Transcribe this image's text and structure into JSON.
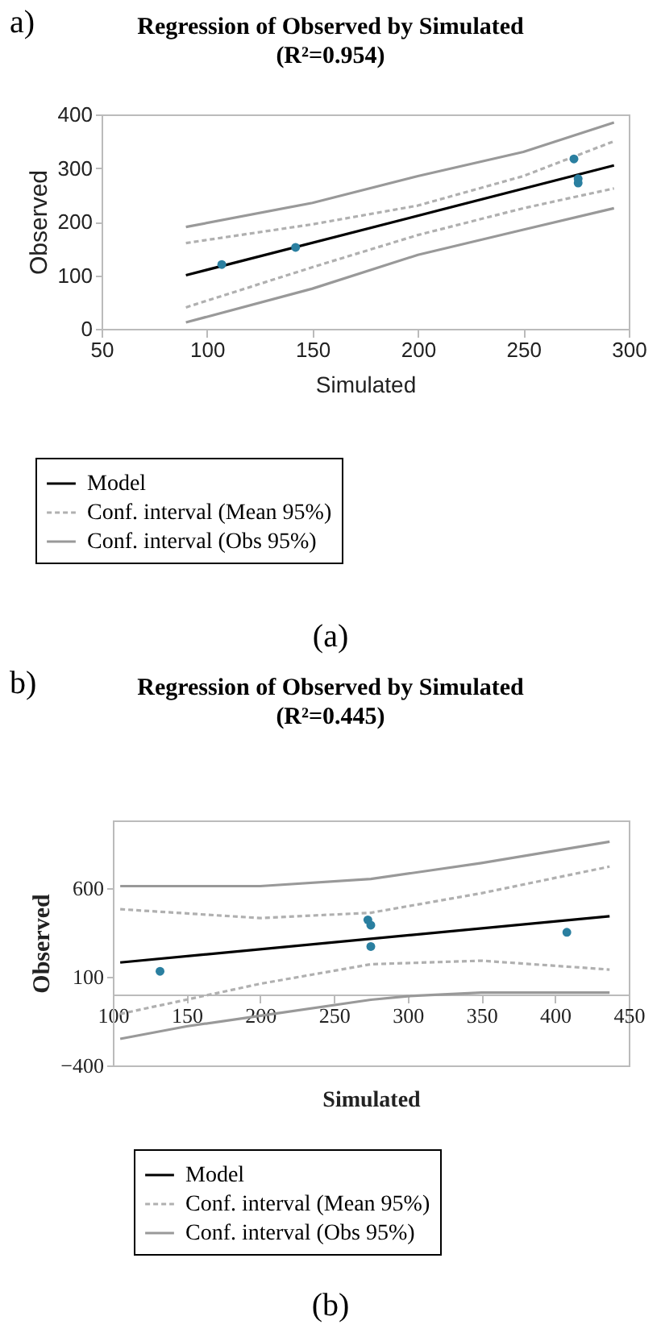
{
  "chart_data": [
    {
      "type": "line",
      "title": "Regression of Observed by Simulated",
      "subtitle": "(R²=0.954)",
      "xlabel": "Simulated",
      "ylabel": "Observed",
      "annotations": [
        "a)",
        "(a)"
      ],
      "xlim": [
        50,
        300
      ],
      "xticks": [
        50,
        100,
        150,
        200,
        250,
        300
      ],
      "ylim": [
        0,
        400
      ],
      "yticks": [
        0,
        100,
        200,
        300,
        400
      ],
      "grid": false,
      "legend": "bottom",
      "series": [
        {
          "name": "Model",
          "color": "#000000",
          "line_style": "solid",
          "x": [
            90,
            293
          ],
          "values": [
            100,
            305
          ]
        },
        {
          "name": "Conf. interval (Mean 95%)",
          "color": "#b0b0b0",
          "line_style": "dashed",
          "x": [
            90,
            150,
            200,
            250,
            293
          ],
          "values": [
            160,
            195,
            230,
            285,
            350
          ]
        },
        {
          "color": "#b0b0b0",
          "line_style": "dashed",
          "x": [
            90,
            150,
            200,
            250,
            293
          ],
          "values": [
            40,
            115,
            175,
            225,
            262
          ]
        },
        {
          "name": "Conf. interval (Obs 95%)",
          "color": "#999999",
          "line_style": "solid",
          "x": [
            90,
            150,
            200,
            250,
            293
          ],
          "values": [
            190,
            235,
            285,
            330,
            385
          ]
        },
        {
          "color": "#999999",
          "line_style": "solid",
          "x": [
            90,
            150,
            200,
            250,
            293
          ],
          "values": [
            12,
            75,
            138,
            185,
            225
          ]
        },
        {
          "type": "scatter",
          "color": "#2a7fa0",
          "marker": "circle",
          "x": [
            107,
            142,
            274,
            276,
            276
          ],
          "values": [
            120,
            152,
            317,
            280,
            272
          ]
        }
      ]
    },
    {
      "type": "line",
      "title": "Regression of Observed by Simulated",
      "subtitle": "(R²=0.445)",
      "xlabel": "Simulated",
      "ylabel": "Observed",
      "annotations": [
        "b)",
        "(b)"
      ],
      "xlim": [
        100,
        450
      ],
      "xticks": [
        100,
        150,
        200,
        250,
        300,
        350,
        400,
        450
      ],
      "ylim": [
        -400,
        980
      ],
      "yticks": [
        -400,
        100,
        600
      ],
      "grid": false,
      "legend": "bottom",
      "series": [
        {
          "name": "Model",
          "color": "#000000",
          "line_style": "solid",
          "x": [
            105,
            437
          ],
          "values": [
            180,
            440
          ]
        },
        {
          "name": "Conf. interval (Mean 95%)",
          "color": "#b0b0b0",
          "line_style": "dashed",
          "x": [
            105,
            200,
            275,
            350,
            437
          ],
          "values": [
            480,
            430,
            460,
            570,
            720
          ]
        },
        {
          "color": "#b0b0b0",
          "line_style": "dashed",
          "x": [
            105,
            200,
            275,
            350,
            437
          ],
          "values": [
            -110,
            60,
            170,
            190,
            140
          ]
        },
        {
          "name": "Conf. interval (Obs 95%)",
          "color": "#999999",
          "line_style": "solid",
          "x": [
            105,
            200,
            275,
            350,
            437
          ],
          "values": [
            610,
            610,
            650,
            740,
            860
          ]
        },
        {
          "color": "#999999",
          "line_style": "solid",
          "x": [
            105,
            150,
            200,
            275,
            300,
            350,
            437
          ],
          "values": [
            -250,
            -180,
            -120,
            -30,
            -10,
            10,
            10
          ]
        },
        {
          "type": "scatter",
          "color": "#2a7fa0",
          "marker": "circle",
          "x": [
            132,
            273,
            275,
            275,
            408
          ],
          "values": [
            130,
            420,
            390,
            270,
            350
          ]
        }
      ]
    }
  ]
}
